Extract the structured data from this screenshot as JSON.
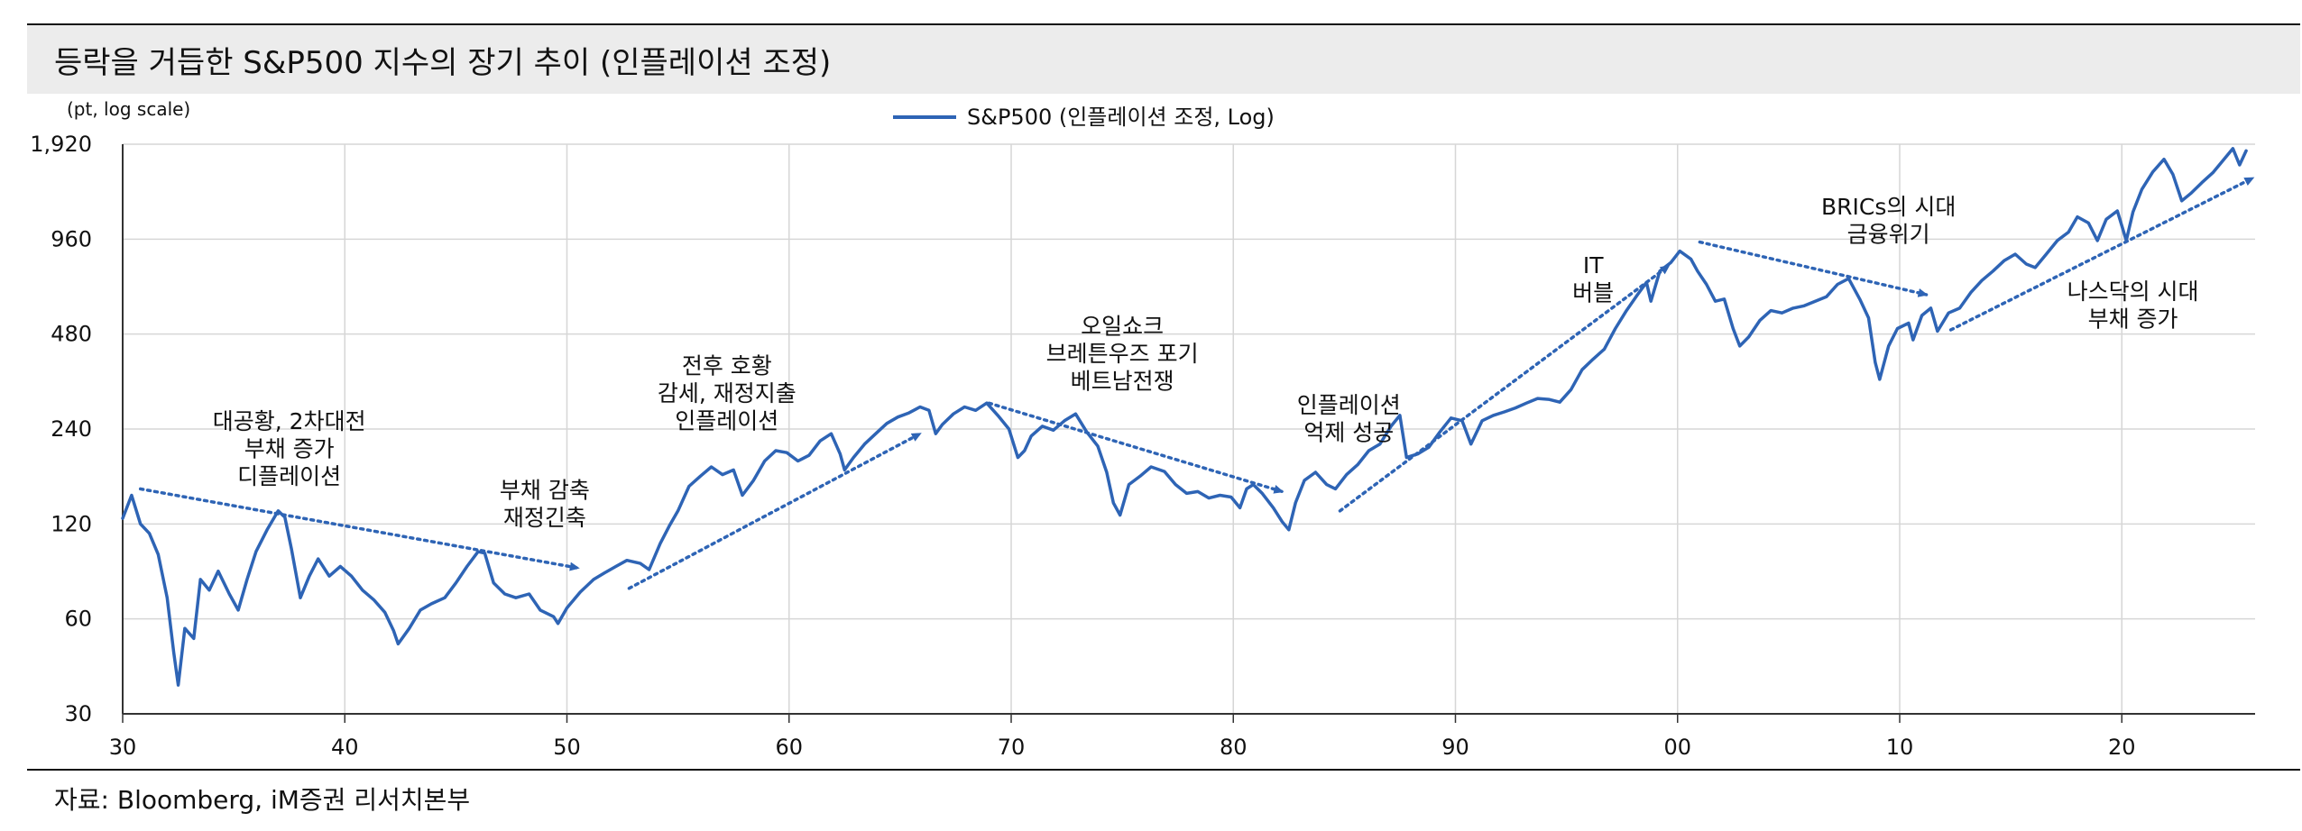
{
  "header": {
    "title": "등락을 거듭한 S&P500 지수의 장기 추이 (인플레이션 조정)"
  },
  "footer": {
    "source": "자료: Bloomberg, iM증권 리서치본부"
  },
  "colors": {
    "series": "#2e64b5",
    "arrow": "#2e64b5",
    "grid": "#d6d6d6",
    "axis": "#333333",
    "title_band": "#ececec"
  },
  "chart_data": {
    "type": "line",
    "title": "등락을 거듭한 S&P500 지수의 장기 추이 (인플레이션 조정)",
    "unit_label": "(pt, log scale)",
    "y_scale": "log",
    "ylim": [
      30,
      1920
    ],
    "y_ticks": [
      30,
      60,
      120,
      240,
      480,
      960,
      1920
    ],
    "y_tick_labels": [
      "30",
      "60",
      "120",
      "240",
      "480",
      "960",
      "1,920"
    ],
    "xlim": [
      1930,
      2026
    ],
    "x_ticks": [
      1930,
      1940,
      1950,
      1960,
      1970,
      1980,
      1990,
      2000,
      2010,
      2020
    ],
    "x_tick_labels": [
      "30",
      "40",
      "50",
      "60",
      "70",
      "80",
      "90",
      "00",
      "10",
      "20"
    ],
    "grid": true,
    "legend": {
      "position": "top-center",
      "label": "S&P500 (인플레이션 조정, Log)"
    },
    "series": [
      {
        "name": "S&P500 (인플레이션 조정, Log)",
        "points": [
          [
            1930.0,
            125
          ],
          [
            1930.4,
            148
          ],
          [
            1930.8,
            120
          ],
          [
            1931.2,
            112
          ],
          [
            1931.6,
            96
          ],
          [
            1932.0,
            70
          ],
          [
            1932.3,
            47
          ],
          [
            1932.5,
            37
          ],
          [
            1932.8,
            56
          ],
          [
            1933.2,
            52
          ],
          [
            1933.5,
            80
          ],
          [
            1933.9,
            74
          ],
          [
            1934.3,
            85
          ],
          [
            1934.8,
            72
          ],
          [
            1935.2,
            64
          ],
          [
            1935.6,
            80
          ],
          [
            1936.0,
            98
          ],
          [
            1936.5,
            115
          ],
          [
            1937.0,
            132
          ],
          [
            1937.3,
            126
          ],
          [
            1937.6,
            100
          ],
          [
            1938.0,
            70
          ],
          [
            1938.4,
            82
          ],
          [
            1938.8,
            93
          ],
          [
            1939.3,
            82
          ],
          [
            1939.8,
            88
          ],
          [
            1940.3,
            82
          ],
          [
            1940.8,
            74
          ],
          [
            1941.3,
            69
          ],
          [
            1941.8,
            63
          ],
          [
            1942.2,
            55
          ],
          [
            1942.4,
            50
          ],
          [
            1942.9,
            56
          ],
          [
            1943.4,
            64
          ],
          [
            1943.9,
            67
          ],
          [
            1944.5,
            70
          ],
          [
            1945.0,
            78
          ],
          [
            1945.5,
            88
          ],
          [
            1946.0,
            98
          ],
          [
            1946.3,
            97
          ],
          [
            1946.7,
            78
          ],
          [
            1947.2,
            72
          ],
          [
            1947.7,
            70
          ],
          [
            1948.3,
            72
          ],
          [
            1948.8,
            64
          ],
          [
            1949.4,
            61
          ],
          [
            1949.6,
            58
          ],
          [
            1950.0,
            65
          ],
          [
            1950.6,
            73
          ],
          [
            1951.2,
            80
          ],
          [
            1951.7,
            84
          ],
          [
            1952.2,
            88
          ],
          [
            1952.7,
            92
          ],
          [
            1953.3,
            90
          ],
          [
            1953.7,
            86
          ],
          [
            1954.2,
            104
          ],
          [
            1954.6,
            118
          ],
          [
            1955.0,
            132
          ],
          [
            1955.5,
            158
          ],
          [
            1956.0,
            170
          ],
          [
            1956.5,
            182
          ],
          [
            1957.0,
            172
          ],
          [
            1957.5,
            178
          ],
          [
            1957.9,
            148
          ],
          [
            1958.4,
            165
          ],
          [
            1958.9,
            190
          ],
          [
            1959.4,
            205
          ],
          [
            1959.9,
            202
          ],
          [
            1960.4,
            190
          ],
          [
            1960.9,
            198
          ],
          [
            1961.4,
            220
          ],
          [
            1961.9,
            232
          ],
          [
            1962.3,
            200
          ],
          [
            1962.5,
            178
          ],
          [
            1962.9,
            195
          ],
          [
            1963.4,
            215
          ],
          [
            1963.9,
            232
          ],
          [
            1964.4,
            250
          ],
          [
            1964.9,
            262
          ],
          [
            1965.4,
            270
          ],
          [
            1965.9,
            282
          ],
          [
            1966.3,
            275
          ],
          [
            1966.6,
            232
          ],
          [
            1966.9,
            248
          ],
          [
            1967.4,
            268
          ],
          [
            1967.9,
            282
          ],
          [
            1968.4,
            275
          ],
          [
            1968.9,
            290
          ],
          [
            1969.4,
            265
          ],
          [
            1969.9,
            240
          ],
          [
            1970.3,
            195
          ],
          [
            1970.6,
            205
          ],
          [
            1970.9,
            228
          ],
          [
            1971.4,
            245
          ],
          [
            1971.9,
            238
          ],
          [
            1972.4,
            255
          ],
          [
            1972.9,
            268
          ],
          [
            1973.4,
            235
          ],
          [
            1973.9,
            212
          ],
          [
            1974.3,
            175
          ],
          [
            1974.6,
            140
          ],
          [
            1974.9,
            128
          ],
          [
            1975.3,
            160
          ],
          [
            1975.8,
            170
          ],
          [
            1976.3,
            182
          ],
          [
            1976.9,
            176
          ],
          [
            1977.4,
            160
          ],
          [
            1977.9,
            150
          ],
          [
            1978.4,
            152
          ],
          [
            1978.9,
            145
          ],
          [
            1979.4,
            148
          ],
          [
            1979.9,
            146
          ],
          [
            1980.3,
            135
          ],
          [
            1980.6,
            155
          ],
          [
            1980.9,
            160
          ],
          [
            1981.3,
            150
          ],
          [
            1981.8,
            135
          ],
          [
            1982.2,
            122
          ],
          [
            1982.5,
            115
          ],
          [
            1982.8,
            140
          ],
          [
            1983.2,
            165
          ],
          [
            1983.7,
            175
          ],
          [
            1984.2,
            160
          ],
          [
            1984.6,
            155
          ],
          [
            1985.1,
            172
          ],
          [
            1985.6,
            185
          ],
          [
            1986.1,
            205
          ],
          [
            1986.6,
            215
          ],
          [
            1987.1,
            245
          ],
          [
            1987.5,
            265
          ],
          [
            1987.8,
            195
          ],
          [
            1988.3,
            200
          ],
          [
            1988.8,
            210
          ],
          [
            1989.3,
            235
          ],
          [
            1989.8,
            260
          ],
          [
            1990.3,
            255
          ],
          [
            1990.7,
            215
          ],
          [
            1991.2,
            255
          ],
          [
            1991.7,
            265
          ],
          [
            1992.2,
            272
          ],
          [
            1992.7,
            280
          ],
          [
            1993.2,
            290
          ],
          [
            1993.7,
            300
          ],
          [
            1994.2,
            298
          ],
          [
            1994.7,
            292
          ],
          [
            1995.2,
            320
          ],
          [
            1995.7,
            370
          ],
          [
            1996.2,
            400
          ],
          [
            1996.7,
            430
          ],
          [
            1997.2,
            500
          ],
          [
            1997.7,
            570
          ],
          [
            1998.2,
            640
          ],
          [
            1998.6,
            700
          ],
          [
            1998.8,
            610
          ],
          [
            1999.2,
            760
          ],
          [
            1999.7,
            810
          ],
          [
            2000.1,
            880
          ],
          [
            2000.6,
            830
          ],
          [
            2000.9,
            760
          ],
          [
            2001.3,
            690
          ],
          [
            2001.7,
            610
          ],
          [
            2002.1,
            620
          ],
          [
            2002.5,
            500
          ],
          [
            2002.8,
            440
          ],
          [
            2003.2,
            470
          ],
          [
            2003.7,
            530
          ],
          [
            2004.2,
            570
          ],
          [
            2004.7,
            560
          ],
          [
            2005.2,
            580
          ],
          [
            2005.7,
            590
          ],
          [
            2006.2,
            610
          ],
          [
            2006.7,
            630
          ],
          [
            2007.2,
            690
          ],
          [
            2007.7,
            720
          ],
          [
            2008.2,
            620
          ],
          [
            2008.6,
            540
          ],
          [
            2008.9,
            390
          ],
          [
            2009.1,
            345
          ],
          [
            2009.5,
            440
          ],
          [
            2009.9,
            500
          ],
          [
            2010.4,
            520
          ],
          [
            2010.6,
            460
          ],
          [
            2011.0,
            550
          ],
          [
            2011.4,
            580
          ],
          [
            2011.7,
            490
          ],
          [
            2012.2,
            560
          ],
          [
            2012.7,
            580
          ],
          [
            2013.2,
            650
          ],
          [
            2013.7,
            710
          ],
          [
            2014.2,
            760
          ],
          [
            2014.7,
            820
          ],
          [
            2015.2,
            860
          ],
          [
            2015.7,
            800
          ],
          [
            2016.1,
            780
          ],
          [
            2016.6,
            860
          ],
          [
            2017.1,
            950
          ],
          [
            2017.6,
            1010
          ],
          [
            2018.0,
            1130
          ],
          [
            2018.5,
            1080
          ],
          [
            2018.9,
            950
          ],
          [
            2019.3,
            1110
          ],
          [
            2019.8,
            1180
          ],
          [
            2020.2,
            950
          ],
          [
            2020.5,
            1170
          ],
          [
            2020.9,
            1380
          ],
          [
            2021.4,
            1570
          ],
          [
            2021.9,
            1720
          ],
          [
            2022.3,
            1540
          ],
          [
            2022.7,
            1270
          ],
          [
            2023.1,
            1340
          ],
          [
            2023.6,
            1450
          ],
          [
            2024.1,
            1560
          ],
          [
            2024.6,
            1720
          ],
          [
            2025.0,
            1860
          ],
          [
            2025.3,
            1650
          ],
          [
            2025.6,
            1830
          ]
        ]
      }
    ],
    "trend_arrows": [
      {
        "from": [
          1930.8,
          155
        ],
        "to": [
          1950.5,
          87
        ]
      },
      {
        "from": [
          1952.8,
          75
        ],
        "to": [
          1965.9,
          232
        ]
      },
      {
        "from": [
          1969.0,
          290
        ],
        "to": [
          1982.2,
          152
        ]
      },
      {
        "from": [
          1984.8,
          132
        ],
        "to": [
          1999.6,
          790
        ]
      },
      {
        "from": [
          2001.0,
          940
        ],
        "to": [
          2011.2,
          640
        ]
      },
      {
        "from": [
          2012.3,
          495
        ],
        "to": [
          2025.9,
          1500
        ]
      }
    ],
    "annotations": [
      {
        "lines": [
          "대공황, 2차대전",
          "부채 증가",
          "디플레이션"
        ],
        "x": 1937.5,
        "y": 240
      },
      {
        "lines": [
          "부채 감축",
          "재정긴축"
        ],
        "x": 1949.0,
        "y": 145
      },
      {
        "lines": [
          "전후 호황",
          "감세, 재정지출",
          "인플레이션"
        ],
        "x": 1957.2,
        "y": 360
      },
      {
        "lines": [
          "오일쇼크",
          "브레튼우즈 포기",
          "베트남전쟁"
        ],
        "x": 1975.0,
        "y": 480
      },
      {
        "lines": [
          "인플레이션",
          "억제 성공"
        ],
        "x": 1985.2,
        "y": 270
      },
      {
        "lines": [
          "IT",
          "버블"
        ],
        "x": 1996.2,
        "y": 750
      },
      {
        "lines": [
          "BRICs의 시대",
          "금융위기"
        ],
        "x": 2009.5,
        "y": 1150
      },
      {
        "lines": [
          "나스닥의 시대",
          "부채 증가"
        ],
        "x": 2020.5,
        "y": 620
      }
    ]
  }
}
